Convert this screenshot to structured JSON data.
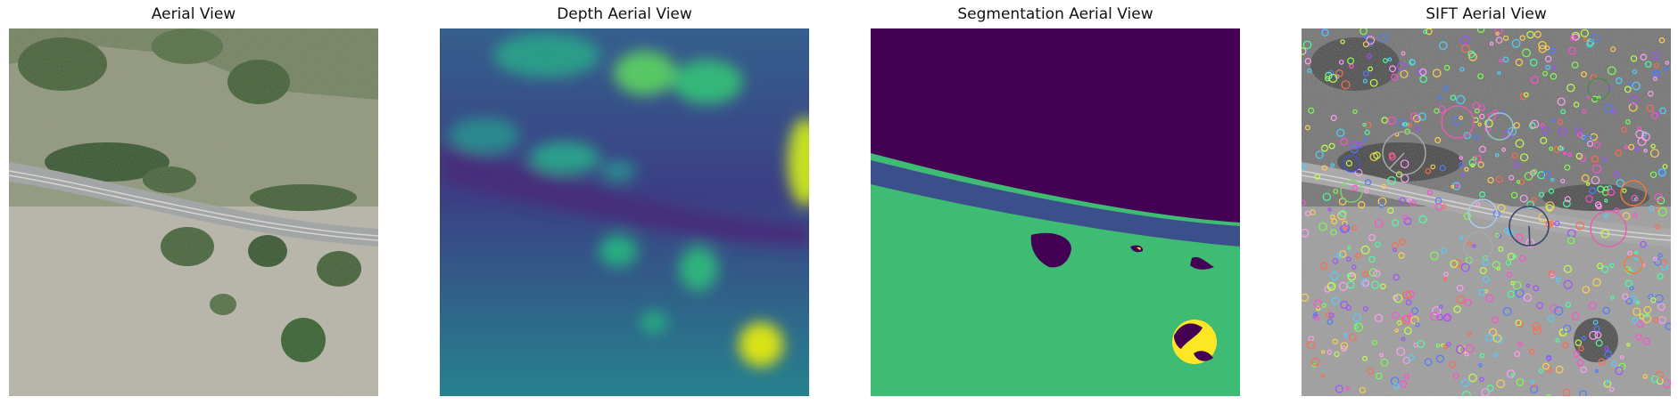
{
  "panels": [
    {
      "title": "Aerial View"
    },
    {
      "title": "Depth Aerial View"
    },
    {
      "title": "Segmentation Aerial View"
    },
    {
      "title": "SIFT Aerial View"
    }
  ],
  "colors": {
    "background": "#ffffff",
    "seg_sky": "#440154",
    "seg_road": "#3b4f8b",
    "seg_ground": "#3fbc73",
    "seg_tree": "#fde725"
  }
}
